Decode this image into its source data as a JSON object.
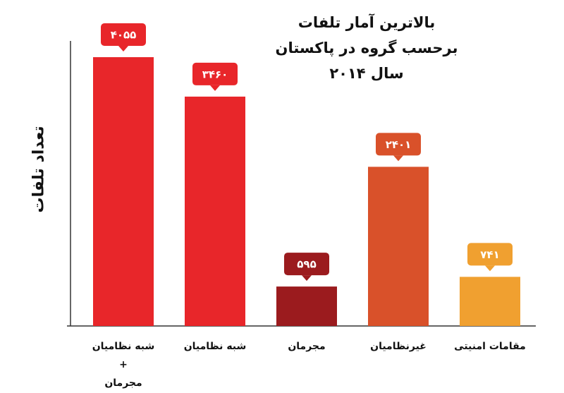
{
  "chart_data": {
    "type": "bar",
    "title": "بالاترین آمار تلفات\nبرحسب گروه در پاکستان\nسال ۲۰۱۴",
    "y_label": "تعداد تلفات",
    "categories": [
      "شبه نظامیان\n+\nمجرمان",
      "شبه نظامیان",
      "مجرمان",
      "غیرنظامیان",
      "مقامات امنیتی"
    ],
    "values": [
      4055,
      3460,
      595,
      2401,
      741
    ],
    "value_labels": [
      "۴۰۵۵",
      "۳۴۶۰",
      "۵۹۵",
      "۲۴۰۱",
      "۷۴۱"
    ],
    "colors": [
      "#e8262a",
      "#e8262a",
      "#9b1b1e",
      "#d9512a",
      "#f0a030"
    ],
    "ylim": [
      0,
      4300
    ]
  }
}
